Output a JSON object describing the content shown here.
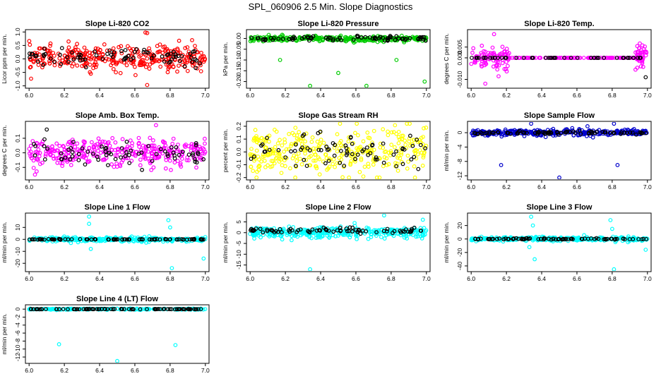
{
  "page_title": "SPL_060906  2.5 Min. Slope Diagnostics",
  "chart_data": [
    {
      "type": "scatter",
      "title": "Slope Li-820 CO2",
      "ylabel": "Licor ppm per min.",
      "xlim": [
        6.0,
        7.0
      ],
      "ylim": [
        -1.0,
        1.0
      ],
      "xticks": [
        "6.0",
        "6.2",
        "6.4",
        "6.6",
        "6.8",
        "7.0"
      ],
      "yticks": [
        {
          "v": -1.0,
          "label": "-1.0"
        },
        {
          "v": -0.5,
          "label": "-0.5"
        },
        {
          "v": 0.0,
          "label": "0.0"
        },
        {
          "v": 0.5,
          "label": "0.5"
        },
        {
          "v": 1.0,
          "label": "1.0"
        }
      ],
      "series": [
        {
          "name": "cloud",
          "color": "#ff0000",
          "center": 0.05,
          "spread": 0.45,
          "count": 340
        },
        {
          "name": "black",
          "color": "#000000",
          "center": 0.05,
          "spread": 0.3,
          "count": 80
        }
      ],
      "outliers": [
        {
          "x": 6.66,
          "y": 0.98,
          "color": "#ff0000"
        },
        {
          "x": 6.67,
          "y": 0.96,
          "color": "#ff0000"
        },
        {
          "x": 6.67,
          "y": -0.97,
          "color": "#ff0000"
        },
        {
          "x": 6.35,
          "y": -0.55,
          "color": "#ff0000"
        }
      ]
    },
    {
      "type": "scatter",
      "title": "Slope Li-820 Pressure",
      "ylabel": "kPa per min.",
      "xlim": [
        6.0,
        7.0
      ],
      "ylim": [
        -0.22,
        0.03
      ],
      "xticks": [
        "6.0",
        "6.2",
        "6.4",
        "6.6",
        "6.8",
        "7.0"
      ],
      "yticks": [
        {
          "v": 0.0,
          "label": "0.00"
        },
        {
          "v": -0.05,
          "label": "-0.05"
        },
        {
          "v": -0.1,
          "label": "-0.10"
        },
        {
          "v": -0.15,
          "label": "-0.15"
        },
        {
          "v": -0.2,
          "label": "-0.20"
        }
      ],
      "series": [
        {
          "name": "cloud",
          "color": "#00cc00",
          "center": -0.002,
          "spread": 0.012,
          "count": 320
        },
        {
          "name": "black",
          "color": "#000000",
          "center": 0.0,
          "spread": 0.01,
          "count": 80
        }
      ],
      "outliers": [
        {
          "x": 6.17,
          "y": -0.1,
          "color": "#00cc00"
        },
        {
          "x": 6.34,
          "y": -0.22,
          "color": "#00cc00"
        },
        {
          "x": 6.5,
          "y": -0.16,
          "color": "#00cc00"
        },
        {
          "x": 6.66,
          "y": -0.22,
          "color": "#00cc00"
        },
        {
          "x": 6.83,
          "y": -0.1,
          "color": "#00cc00"
        },
        {
          "x": 6.99,
          "y": -0.2,
          "color": "#00cc00"
        }
      ]
    },
    {
      "type": "scatter",
      "title": "Slope Li-820 Temp.",
      "ylabel": "degrees C per min.",
      "xlim": [
        6.0,
        7.0
      ],
      "ylim": [
        -0.013,
        0.012
      ],
      "xticks": [
        "6.0",
        "6.2",
        "6.4",
        "6.6",
        "6.8",
        "7.0"
      ],
      "yticks": [
        {
          "v": -0.01,
          "label": "-0.010"
        },
        {
          "v": 0.0,
          "label": "0.000"
        },
        {
          "v": 0.005,
          "label": "0.005"
        }
      ],
      "series": [
        {
          "name": "edge-left",
          "color": "#ff00ff",
          "xrange": [
            6.0,
            6.22
          ],
          "center": 0.0,
          "spread": 0.006,
          "count": 90
        },
        {
          "name": "flat",
          "color": "#ff00ff",
          "xrange": [
            6.2,
            6.95
          ],
          "center": 0.0,
          "spread": 0.0,
          "count": 120
        },
        {
          "name": "edge-right",
          "color": "#ff00ff",
          "xrange": [
            6.93,
            7.0
          ],
          "center": 0.0,
          "spread": 0.006,
          "count": 45
        },
        {
          "name": "black",
          "color": "#000000",
          "xrange": [
            6.0,
            7.0
          ],
          "center": 0.0,
          "spread": 0.0,
          "count": 50
        }
      ],
      "outliers": [
        {
          "x": 6.13,
          "y": 0.011,
          "color": "#ff00ff"
        },
        {
          "x": 6.08,
          "y": -0.012,
          "color": "#ff00ff"
        },
        {
          "x": 6.99,
          "y": -0.009,
          "color": "#000000"
        }
      ]
    },
    {
      "type": "scatter",
      "title": "Slope Amb. Box Temp.",
      "ylabel": "degrees C per min.",
      "xlim": [
        6.0,
        7.0
      ],
      "ylim": [
        -0.17,
        0.2
      ],
      "xticks": [
        "6.0",
        "6.2",
        "6.4",
        "6.6",
        "6.8",
        "7.0"
      ],
      "yticks": [
        {
          "v": -0.1,
          "label": "-0.1"
        },
        {
          "v": 0.0,
          "label": "0.0"
        },
        {
          "v": 0.1,
          "label": "0.1"
        }
      ],
      "series": [
        {
          "name": "cloud",
          "color": "#ff00ff",
          "center": 0.0,
          "spread": 0.09,
          "count": 340
        },
        {
          "name": "black",
          "color": "#000000",
          "center": 0.0,
          "spread": 0.08,
          "count": 70
        }
      ],
      "outliers": [
        {
          "x": 6.72,
          "y": 0.19,
          "color": "#ff00ff"
        },
        {
          "x": 6.1,
          "y": 0.16,
          "color": "#000000"
        }
      ]
    },
    {
      "type": "scatter",
      "title": "Slope Gas Stream RH",
      "ylabel": "percent per min.",
      "xlim": [
        6.0,
        7.0
      ],
      "ylim": [
        -0.2,
        0.22
      ],
      "xticks": [
        "6.0",
        "6.2",
        "6.4",
        "6.6",
        "6.8",
        "7.0"
      ],
      "yticks": [
        {
          "v": -0.2,
          "label": "-0.2"
        },
        {
          "v": -0.1,
          "label": "-0.1"
        },
        {
          "v": 0.0,
          "label": "0.0"
        },
        {
          "v": 0.1,
          "label": "0.1"
        },
        {
          "v": 0.2,
          "label": "0.2"
        }
      ],
      "series": [
        {
          "name": "cloud",
          "color": "#ffff00",
          "center": 0.0,
          "spread": 0.19,
          "count": 340
        },
        {
          "name": "black",
          "color": "#000000",
          "center": 0.0,
          "spread": 0.15,
          "count": 75
        }
      ],
      "outliers": []
    },
    {
      "type": "scatter",
      "title": "Slope Sample Flow",
      "ylabel": "ml/min per min.",
      "xlim": [
        6.0,
        7.0
      ],
      "ylim": [
        -12.5,
        2.5
      ],
      "xticks": [
        "6.0",
        "6.2",
        "6.4",
        "6.6",
        "6.8",
        "7.0"
      ],
      "yticks": [
        {
          "v": -12,
          "label": "-12"
        },
        {
          "v": -8,
          "label": "-8"
        },
        {
          "v": -4,
          "label": "-4"
        },
        {
          "v": 0,
          "label": "0"
        }
      ],
      "series": [
        {
          "name": "cloud",
          "color": "#0000cc",
          "center": 0.0,
          "spread": 0.8,
          "count": 340
        },
        {
          "name": "black",
          "color": "#000000",
          "center": 0.0,
          "spread": 0.4,
          "count": 80
        }
      ],
      "outliers": [
        {
          "x": 6.17,
          "y": -9.0,
          "color": "#0000cc"
        },
        {
          "x": 6.34,
          "y": 2.5,
          "color": "#0000cc"
        },
        {
          "x": 6.5,
          "y": -12.5,
          "color": "#0000cc"
        },
        {
          "x": 6.66,
          "y": 1.8,
          "color": "#0000cc"
        },
        {
          "x": 6.83,
          "y": -9.0,
          "color": "#0000cc"
        },
        {
          "x": 6.81,
          "y": 2.5,
          "color": "#0000cc"
        }
      ]
    },
    {
      "type": "scatter",
      "title": "Slope Line 1 Flow",
      "ylabel": "ml/min per min.",
      "xlim": [
        6.0,
        7.0
      ],
      "ylim": [
        -25,
        20
      ],
      "xticks": [
        "6.0",
        "6.2",
        "6.4",
        "6.6",
        "6.8",
        "7.0"
      ],
      "yticks": [
        {
          "v": -20,
          "label": "-20"
        },
        {
          "v": -10,
          "label": "-10"
        },
        {
          "v": 0,
          "label": "0"
        },
        {
          "v": 10,
          "label": "10"
        }
      ],
      "series": [
        {
          "name": "cloud",
          "color": "#00ffff",
          "center": 0.0,
          "spread": 1.8,
          "count": 300
        },
        {
          "name": "black",
          "color": "#000000",
          "center": 0.0,
          "spread": 0.3,
          "count": 85
        }
      ],
      "outliers": [
        {
          "x": 6.34,
          "y": 19,
          "color": "#00ffff"
        },
        {
          "x": 6.34,
          "y": 13,
          "color": "#00ffff"
        },
        {
          "x": 6.35,
          "y": -8,
          "color": "#00ffff"
        },
        {
          "x": 6.79,
          "y": 16,
          "color": "#00ffff"
        },
        {
          "x": 6.8,
          "y": 10,
          "color": "#00ffff"
        },
        {
          "x": 6.81,
          "y": -24,
          "color": "#00ffff"
        },
        {
          "x": 6.99,
          "y": -16,
          "color": "#00ffff"
        }
      ]
    },
    {
      "type": "scatter",
      "title": "Slope Line 2 Flow",
      "ylabel": "ml/min per min.",
      "xlim": [
        6.0,
        7.0
      ],
      "ylim": [
        -17,
        8
      ],
      "xticks": [
        "6.0",
        "6.2",
        "6.4",
        "6.6",
        "6.8",
        "7.0"
      ],
      "yticks": [
        {
          "v": -15,
          "label": "-15"
        },
        {
          "v": -10,
          "label": "-10"
        },
        {
          "v": -5,
          "label": "-5"
        },
        {
          "v": 0,
          "label": "0"
        },
        {
          "v": 5,
          "label": "5"
        }
      ],
      "series": [
        {
          "name": "cloud",
          "color": "#00ffff",
          "center": 0.0,
          "spread": 2.5,
          "count": 330
        },
        {
          "name": "black",
          "color": "#000000",
          "center": 1.0,
          "spread": 1.2,
          "count": 80
        }
      ],
      "outliers": [
        {
          "x": 6.34,
          "y": -17,
          "color": "#00ffff"
        },
        {
          "x": 6.76,
          "y": 8,
          "color": "#00ffff"
        },
        {
          "x": 6.98,
          "y": 6,
          "color": "#00ffff"
        }
      ]
    },
    {
      "type": "scatter",
      "title": "Slope Line 3 Flow",
      "ylabel": "ml/min per min.",
      "xlim": [
        6.0,
        7.0
      ],
      "ylim": [
        -45,
        35
      ],
      "xticks": [
        "6.0",
        "6.2",
        "6.4",
        "6.6",
        "6.8",
        "7.0"
      ],
      "yticks": [
        {
          "v": -40,
          "label": "-40"
        },
        {
          "v": -20,
          "label": "-20"
        },
        {
          "v": 0,
          "label": "0"
        },
        {
          "v": 20,
          "label": "20"
        }
      ],
      "series": [
        {
          "name": "cloud",
          "color": "#00ffff",
          "center": 0.0,
          "spread": 3.0,
          "count": 300
        },
        {
          "name": "black",
          "color": "#000000",
          "center": 0.0,
          "spread": 1.0,
          "count": 85
        }
      ],
      "outliers": [
        {
          "x": 6.34,
          "y": 33,
          "color": "#00ffff"
        },
        {
          "x": 6.35,
          "y": 20,
          "color": "#00ffff"
        },
        {
          "x": 6.33,
          "y": -12,
          "color": "#00ffff"
        },
        {
          "x": 6.36,
          "y": -30,
          "color": "#00ffff"
        },
        {
          "x": 6.79,
          "y": 28,
          "color": "#00ffff"
        },
        {
          "x": 6.8,
          "y": 15,
          "color": "#00ffff"
        },
        {
          "x": 6.81,
          "y": -45,
          "color": "#00ffff"
        },
        {
          "x": 6.99,
          "y": -16,
          "color": "#00ffff"
        }
      ]
    },
    {
      "type": "scatter",
      "title": "Slope Line 4 (LT) Flow",
      "ylabel": "ml/min per min.",
      "xlim": [
        6.0,
        7.0
      ],
      "ylim": [
        -13,
        0.5
      ],
      "xticks": [
        "6.0",
        "6.2",
        "6.4",
        "6.6",
        "6.8",
        "7.0"
      ],
      "yticks": [
        {
          "v": -12,
          "label": "-12"
        },
        {
          "v": -10,
          "label": "-10"
        },
        {
          "v": -8,
          "label": "-8"
        },
        {
          "v": -6,
          "label": "-6"
        },
        {
          "v": -4,
          "label": "-4"
        },
        {
          "v": -2,
          "label": "-2"
        },
        {
          "v": 0,
          "label": "0"
        }
      ],
      "series": [
        {
          "name": "cloud",
          "color": "#00ffff",
          "center": 0.0,
          "spread": 0.15,
          "count": 180
        },
        {
          "name": "black",
          "color": "#000000",
          "center": 0.0,
          "spread": 0.05,
          "count": 85
        }
      ],
      "outliers": [
        {
          "x": 6.17,
          "y": -8.8,
          "color": "#00ffff"
        },
        {
          "x": 6.5,
          "y": -13,
          "color": "#00ffff"
        },
        {
          "x": 6.83,
          "y": -9.0,
          "color": "#00ffff"
        }
      ]
    }
  ]
}
